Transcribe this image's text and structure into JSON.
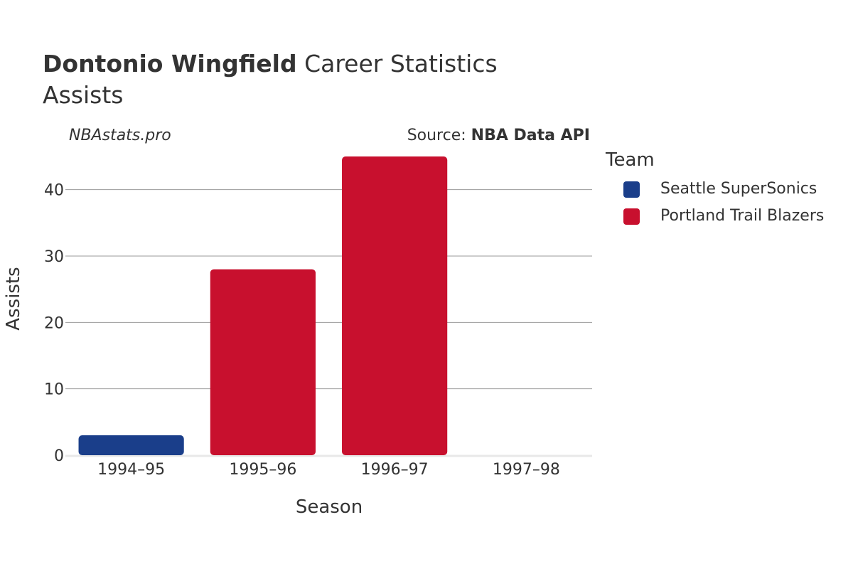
{
  "chart_data": {
    "type": "bar",
    "title_bold": "Dontonio Wingfield",
    "title_rest": " Career Statistics",
    "subtitle": "Assists",
    "watermark": "NBAstats.pro",
    "source_prefix": "Source: ",
    "source_name": "NBA Data API",
    "xlabel": "Season",
    "ylabel": "Assists",
    "categories": [
      "1994–95",
      "1995–96",
      "1996–97",
      "1997–98"
    ],
    "ylim": [
      0,
      45
    ],
    "yticks": [
      0,
      10,
      20,
      30,
      40
    ],
    "grid": true,
    "legend_title": "Team",
    "legend_placement": "right",
    "series": [
      {
        "name": "Seattle SuperSonics",
        "color": "#1a3e8a",
        "values": [
          3,
          null,
          null,
          null
        ]
      },
      {
        "name": "Portland Trail Blazers",
        "color": "#c8102e",
        "values": [
          null,
          28,
          45,
          0
        ]
      }
    ]
  }
}
